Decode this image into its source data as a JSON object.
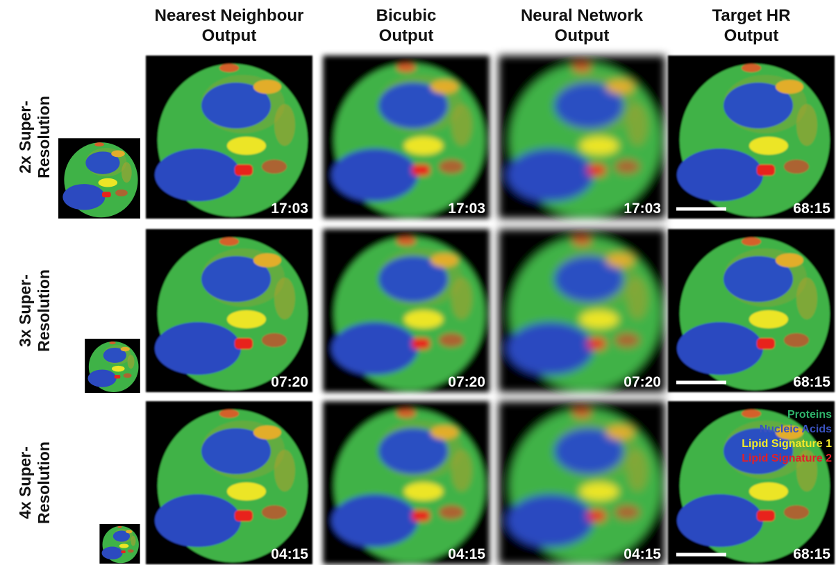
{
  "columns": [
    [
      "Nearest Neighbour",
      "Output"
    ],
    [
      "Bicubic",
      "Output"
    ],
    [
      "Neural Network",
      "Output"
    ],
    [
      "Target HR",
      "Output"
    ]
  ],
  "rows": [
    {
      "label": [
        "2x Super-",
        "Resolution"
      ],
      "times": [
        "17:03",
        "17:03",
        "17:03",
        "68:15"
      ]
    },
    {
      "label": [
        "3x Super-",
        "Resolution"
      ],
      "times": [
        "07:20",
        "07:20",
        "07:20",
        "68:15"
      ]
    },
    {
      "label": [
        "4x Super-",
        "Resolution"
      ],
      "times": [
        "04:15",
        "04:15",
        "04:15",
        "68:15"
      ]
    }
  ],
  "legend": [
    "Proteins",
    "Nucleic Acids",
    "Lipid Signature 1",
    "Lipid Signature 2"
  ]
}
